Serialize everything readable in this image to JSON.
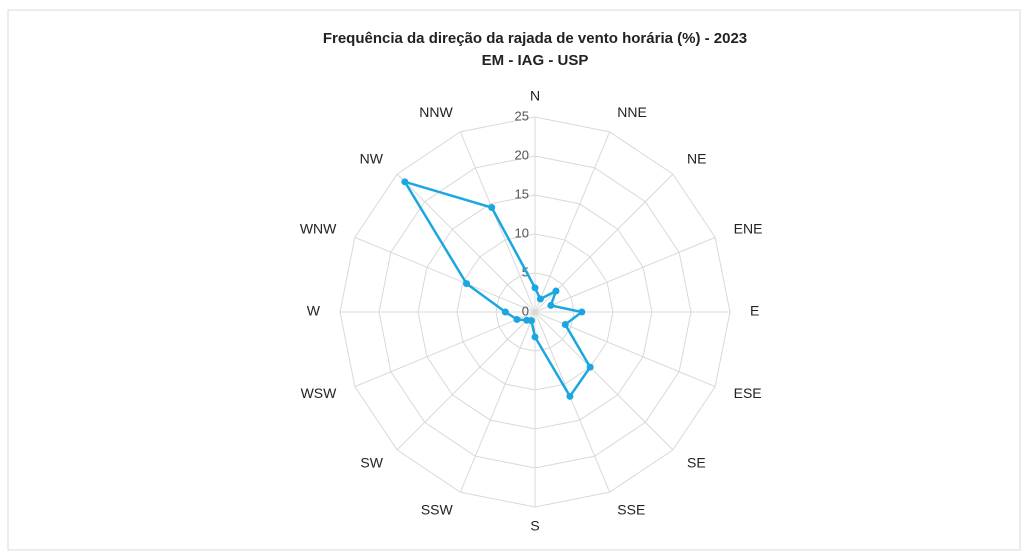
{
  "chart_data": {
    "type": "radar",
    "title": "Frequência da direção da rajada de vento horária (%) - 2023",
    "subtitle": "EM - IAG - USP",
    "categories": [
      "N",
      "NNE",
      "NE",
      "ENE",
      "E",
      "ESE",
      "SE",
      "SSE",
      "S",
      "SSW",
      "SW",
      "WSW",
      "W",
      "WNW",
      "NW",
      "NNW"
    ],
    "series": [
      {
        "name": "2023",
        "color": "#1aa7e0",
        "values": [
          3.1,
          1.8,
          3.8,
          2.2,
          6.0,
          4.2,
          10.0,
          11.7,
          3.2,
          1.2,
          1.5,
          2.5,
          3.8,
          9.5,
          23.6,
          14.5
        ]
      }
    ],
    "ylim": [
      0,
      25
    ],
    "yticks": [
      0,
      5,
      10,
      15,
      20,
      25
    ],
    "grid": true
  }
}
